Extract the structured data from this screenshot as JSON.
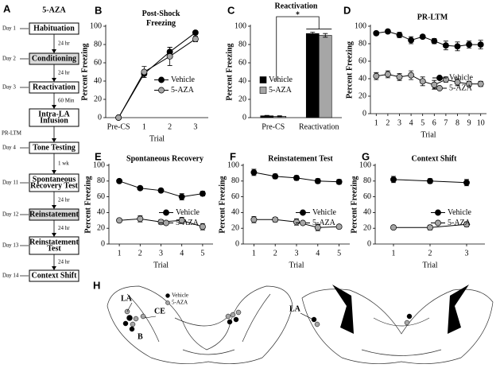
{
  "protocol": {
    "panel": "A",
    "title": "5-AZA",
    "side_label": "PR-LTM",
    "steps": [
      {
        "day": "Day 1",
        "lines": [
          "Habituation"
        ],
        "shaded": false
      },
      {
        "day": "Day 2",
        "lines": [
          "Conditioning"
        ],
        "shaded": true
      },
      {
        "day": "Day 3",
        "lines": [
          "Reactivation"
        ],
        "shaded": false
      },
      {
        "lines": [
          "Intra-LA",
          "Infusion"
        ],
        "shaded": false
      },
      {
        "day": "Day 4",
        "lines": [
          "Tone Testing"
        ],
        "shaded": false
      },
      {
        "day": "Day 11",
        "lines": [
          "Spontaneous",
          "Recovery Test"
        ],
        "shaded": false
      },
      {
        "day": "Day 12",
        "lines": [
          "Reinstatement"
        ],
        "shaded": true
      },
      {
        "day": "Day 13",
        "lines": [
          "Reinstatement",
          "Test"
        ],
        "shaded": false
      },
      {
        "day": "Day 14",
        "lines": [
          "Context Shift"
        ],
        "shaded": false
      }
    ],
    "intervals": [
      "24 hr",
      "24 hr",
      "60 Min",
      null,
      "1 wk",
      "24 hr",
      "24 hr",
      "24 hr"
    ]
  },
  "chart_data": [
    {
      "type": "line",
      "panel": "B",
      "title": "Post-Shock Freezing",
      "categories": [
        "Pre-CS",
        "1",
        "2",
        "3"
      ],
      "xlabel": "Trial",
      "ylabel": "Percent Freezing",
      "ylim": [
        0,
        100
      ],
      "yticks": [
        0,
        20,
        40,
        60,
        80,
        100
      ],
      "legend": "center right",
      "series": [
        {
          "name": "Vehicle",
          "color": "#000000",
          "values": [
            0,
            48,
            72,
            93
          ],
          "errors": [
            0,
            4,
            5,
            2
          ]
        },
        {
          "name": "5-AZA",
          "color": "#a6a6a6",
          "values": [
            0,
            50,
            67,
            86
          ],
          "errors": [
            0,
            6,
            10,
            3
          ]
        }
      ]
    },
    {
      "type": "bar",
      "panel": "C",
      "title": "Reactivation",
      "annotation": "*",
      "categories": [
        "Pre-CS",
        "Reactivation"
      ],
      "ylabel": "Percent Freezing",
      "ylim": [
        0,
        100
      ],
      "yticks": [
        0,
        20,
        40,
        60,
        80,
        100
      ],
      "legend": "center left",
      "series": [
        {
          "name": "Vehicle",
          "color": "#000000",
          "values": [
            2,
            92
          ],
          "errors": [
            0.5,
            1.5
          ]
        },
        {
          "name": "5-AZA",
          "color": "#a6a6a6",
          "values": [
            1.5,
            90
          ],
          "errors": [
            0.5,
            2
          ]
        }
      ]
    },
    {
      "type": "line",
      "panel": "D",
      "title": "PR-LTM",
      "x": [
        1,
        2,
        3,
        4,
        5,
        6,
        7,
        8,
        9,
        10
      ],
      "xlim": [
        0.5,
        10.5
      ],
      "xticks": [
        1,
        2,
        3,
        4,
        5,
        6,
        7,
        8,
        9,
        10
      ],
      "xlabel": "Trial",
      "ylabel": "Percent Freezing",
      "ylim": [
        0,
        100
      ],
      "yticks": [
        0,
        20,
        40,
        60,
        80,
        100
      ],
      "legend": "center right",
      "series": [
        {
          "name": "Vehicle",
          "color": "#000000",
          "values": [
            92,
            94,
            90,
            84,
            88,
            83,
            78,
            77,
            79,
            79
          ],
          "errors": [
            2,
            2,
            3,
            4,
            2,
            3,
            5,
            5,
            4,
            5
          ]
        },
        {
          "name": "5-AZA",
          "color": "#a6a6a6",
          "values": [
            43,
            45,
            42,
            44,
            37,
            33,
            39,
            36,
            34,
            34
          ],
          "errors": [
            4,
            4,
            4,
            5,
            5,
            5,
            3,
            4,
            3,
            3
          ]
        }
      ]
    },
    {
      "type": "line",
      "panel": "E",
      "title": "Spontaneous Recovery",
      "x": [
        1,
        2,
        3,
        4,
        5
      ],
      "xlim": [
        0.5,
        5.5
      ],
      "xticks": [
        1,
        2,
        3,
        4,
        5
      ],
      "xlabel": "Trial",
      "ylabel": "Percent Freezing",
      "ylim": [
        0,
        100
      ],
      "yticks": [
        0,
        20,
        40,
        60,
        80,
        100
      ],
      "legend": "center right",
      "series": [
        {
          "name": "Vehicle",
          "color": "#000000",
          "values": [
            80,
            71,
            68,
            60,
            64
          ],
          "errors": [
            2,
            2,
            2,
            4,
            3
          ]
        },
        {
          "name": "5-AZA",
          "color": "#a6a6a6",
          "values": [
            30,
            32,
            28,
            30,
            22
          ],
          "errors": [
            2,
            4,
            3,
            4,
            4
          ]
        }
      ]
    },
    {
      "type": "line",
      "panel": "F",
      "title": "Reinstatement Test",
      "x": [
        1,
        2,
        3,
        4,
        5
      ],
      "xlim": [
        0.5,
        5.5
      ],
      "xticks": [
        1,
        2,
        3,
        4,
        5
      ],
      "xlabel": "Trial",
      "ylabel": "Percent Freezing",
      "ylim": [
        0,
        100
      ],
      "yticks": [
        0,
        20,
        40,
        60,
        80,
        100
      ],
      "legend": "center right",
      "series": [
        {
          "name": "Vehicle",
          "color": "#000000",
          "values": [
            91,
            86,
            84,
            80,
            79
          ],
          "errors": [
            4,
            3,
            3,
            3,
            3
          ]
        },
        {
          "name": "5-AZA",
          "color": "#a6a6a6",
          "values": [
            31,
            31,
            28,
            21,
            22
          ],
          "errors": [
            4,
            3,
            4,
            4,
            2
          ]
        }
      ]
    },
    {
      "type": "line",
      "panel": "G",
      "title": "Context Shift",
      "x": [
        1,
        2,
        3
      ],
      "xlim": [
        0.5,
        3.5
      ],
      "xticks": [
        1,
        2,
        3
      ],
      "xlabel": "Trial",
      "ylabel": "Percent Freezing",
      "ylim": [
        0,
        100
      ],
      "yticks": [
        0,
        20,
        40,
        60,
        80,
        100
      ],
      "legend": "center right",
      "series": [
        {
          "name": "Vehicle",
          "color": "#000000",
          "values": [
            82,
            80,
            78
          ],
          "errors": [
            4,
            3,
            4
          ]
        },
        {
          "name": "5-AZA",
          "color": "#a6a6a6",
          "values": [
            21,
            21,
            25
          ],
          "errors": [
            2,
            3,
            3
          ]
        }
      ]
    }
  ],
  "anatomy": {
    "panel": "H",
    "labels": [
      "LA",
      "CE",
      "B"
    ],
    "legend": [
      "Vehicle",
      "5-AZA"
    ],
    "right_label": "LA"
  }
}
